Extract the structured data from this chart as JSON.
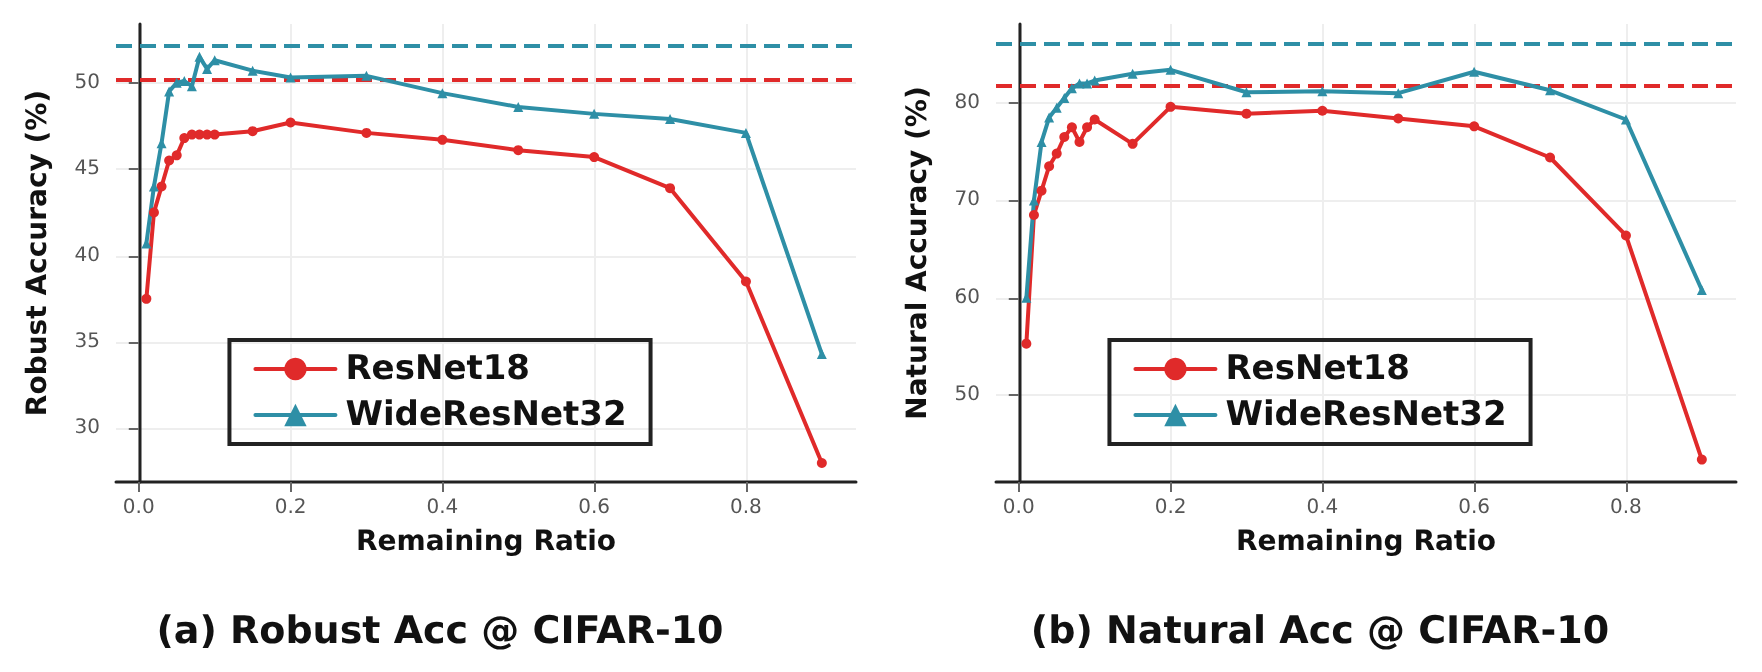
{
  "chart_data": [
    {
      "type": "line",
      "title": "(a) Robust Acc @ CIFAR-10",
      "xlabel": "Remaining Ratio",
      "ylabel": "Robust Accuracy (%)",
      "xlim": [
        -0.03,
        0.945
      ],
      "ylim": [
        26.9,
        53.4
      ],
      "xticks": [
        {
          "value": 0,
          "label": "0.0"
        },
        {
          "value": 0.2,
          "label": "0.2"
        },
        {
          "value": 0.4,
          "label": "0.4"
        },
        {
          "value": 0.6,
          "label": "0.6"
        },
        {
          "value": 0.8,
          "label": "0.8"
        }
      ],
      "yticks": [
        30,
        35,
        40,
        45,
        50
      ],
      "grid": true,
      "legend": "bottom",
      "line_style": "solid",
      "x": [
        0.01,
        0.02,
        0.03,
        0.04,
        0.05,
        0.06,
        0.07,
        0.08,
        0.09,
        0.1,
        0.15,
        0.2,
        0.3,
        0.4,
        0.5,
        0.6,
        0.7,
        0.8,
        0.9
      ],
      "series": [
        {
          "name": "ResNet18",
          "color": "#e02a2a",
          "marker": "circle",
          "values": [
            37.5,
            42.5,
            44,
            45.5,
            45.8,
            46.8,
            47,
            47,
            47,
            47,
            47.2,
            47.7,
            47.1,
            46.7,
            46.1,
            45.7,
            43.9,
            38.5,
            28
          ]
        },
        {
          "name": "WideResNet32",
          "color": "#2e8fa6",
          "marker": "triangle",
          "values": [
            40.7,
            44,
            46.5,
            49.5,
            50,
            50.1,
            49.8,
            51.5,
            50.8,
            51.3,
            50.7,
            50.3,
            50.4,
            49.4,
            48.6,
            48.2,
            47.9,
            47.1,
            34.3
          ]
        }
      ],
      "ref_lines": [
        {
          "axis": "y",
          "value": 52.2,
          "color": "#2e8fa6",
          "line_style": "dashed"
        },
        {
          "axis": "y",
          "value": 50.2,
          "color": "#e02a2a",
          "line_style": "dashed"
        }
      ]
    },
    {
      "type": "line",
      "title": "(b) Natural Acc @ CIFAR-10",
      "xlabel": "Remaining Ratio",
      "ylabel": "Natural Accuracy (%)",
      "xlim": [
        -0.03,
        0.945
      ],
      "ylim": [
        41.1,
        88.1
      ],
      "xticks": [
        {
          "value": 0,
          "label": "0.0"
        },
        {
          "value": 0.2,
          "label": "0.2"
        },
        {
          "value": 0.4,
          "label": "0.4"
        },
        {
          "value": 0.6,
          "label": "0.6"
        },
        {
          "value": 0.8,
          "label": "0.8"
        }
      ],
      "yticks": [
        50,
        60,
        70,
        80
      ],
      "grid": true,
      "legend": "bottom",
      "line_style": "solid",
      "x": [
        0.01,
        0.02,
        0.03,
        0.04,
        0.05,
        0.06,
        0.07,
        0.08,
        0.09,
        0.1,
        0.15,
        0.2,
        0.3,
        0.4,
        0.5,
        0.6,
        0.7,
        0.8,
        0.9
      ],
      "series": [
        {
          "name": "ResNet18",
          "color": "#e02a2a",
          "marker": "circle",
          "values": [
            55.3,
            68.5,
            71,
            73.5,
            74.8,
            76.5,
            77.5,
            76,
            77.5,
            78.3,
            75.8,
            79.6,
            78.9,
            79.2,
            78.4,
            77.6,
            74.4,
            66.4,
            43.4
          ]
        },
        {
          "name": "WideResNet32",
          "color": "#2e8fa6",
          "marker": "triangle",
          "values": [
            60,
            70,
            76,
            78.5,
            79.5,
            80.5,
            81.5,
            82,
            82,
            82.3,
            83,
            83.4,
            81.1,
            81.2,
            81,
            83.2,
            81.3,
            78.3,
            60.8
          ]
        }
      ],
      "ref_lines": [
        {
          "axis": "y",
          "value": 86,
          "color": "#2e8fa6",
          "line_style": "dashed"
        },
        {
          "axis": "y",
          "value": 81.8,
          "color": "#e02a2a",
          "line_style": "dashed"
        }
      ]
    }
  ]
}
